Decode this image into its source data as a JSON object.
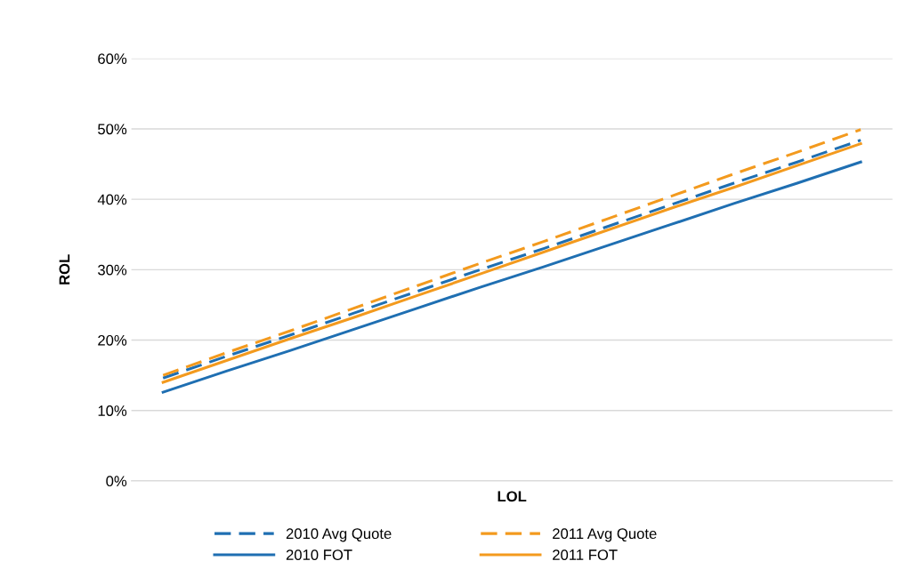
{
  "chart_data": {
    "type": "line",
    "xlabel": "LOL",
    "ylabel": "ROL",
    "categories": [
      null,
      null,
      null,
      null,
      null,
      null,
      null,
      null,
      null,
      null,
      null,
      null
    ],
    "series": [
      {
        "name": "2010 Avg Quote",
        "color": "#1f6fb2",
        "line_style": "dashed",
        "values": [
          14.6,
          17.7,
          20.7,
          23.8,
          26.9,
          30.0,
          33.0,
          36.1,
          39.2,
          42.3,
          45.3,
          48.4
        ]
      },
      {
        "name": "2010 FOT",
        "color": "#1f6fb2",
        "line_style": "solid",
        "values": [
          12.6,
          15.6,
          18.5,
          21.5,
          24.5,
          27.5,
          30.4,
          33.4,
          36.4,
          39.4,
          42.3,
          45.3
        ]
      },
      {
        "name": "2011 Avg Quote",
        "color": "#f39a1e",
        "line_style": "dashed",
        "values": [
          15.0,
          18.2,
          21.3,
          24.5,
          27.7,
          30.9,
          34.0,
          37.2,
          40.4,
          43.6,
          46.7,
          49.9
        ]
      },
      {
        "name": "2011 FOT",
        "color": "#f39a1e",
        "line_style": "solid",
        "values": [
          14.0,
          17.1,
          20.2,
          23.2,
          26.3,
          29.4,
          32.5,
          35.6,
          38.7,
          41.7,
          44.8,
          47.9
        ]
      }
    ],
    "ylim": [
      0,
      60
    ],
    "yticks": [
      {
        "value": 0,
        "label": "0%"
      },
      {
        "value": 10,
        "label": "10%"
      },
      {
        "value": 20,
        "label": "20%"
      },
      {
        "value": 30,
        "label": "30%"
      },
      {
        "value": 40,
        "label": "40%"
      },
      {
        "value": 50,
        "label": "50%"
      },
      {
        "value": 60,
        "label": "60%"
      }
    ],
    "grid": "y",
    "legend": "bottom",
    "marker": "none",
    "tick_labels": "y"
  }
}
